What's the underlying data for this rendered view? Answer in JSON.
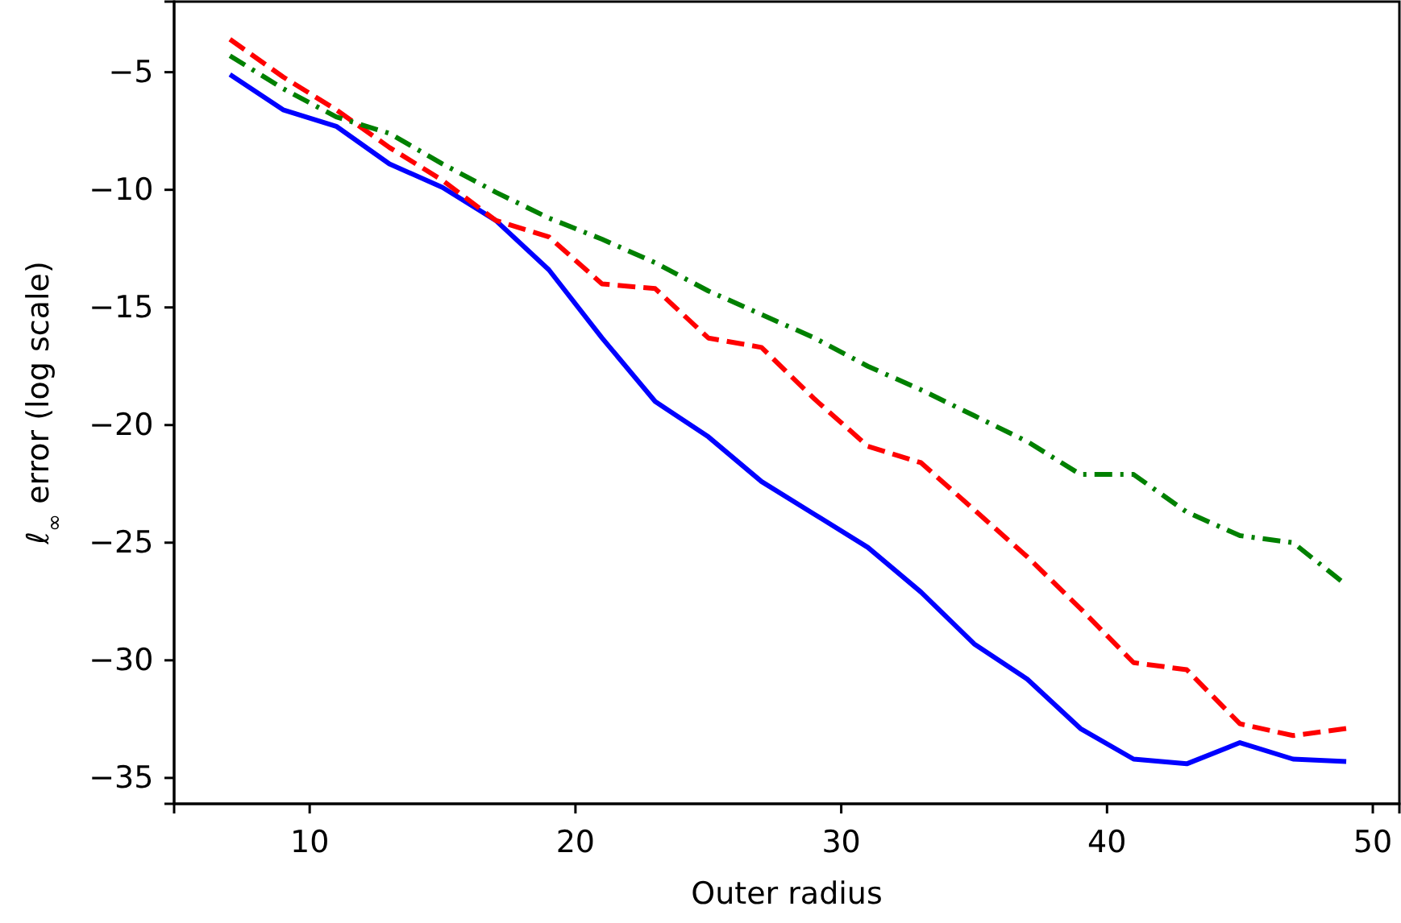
{
  "chart_data": {
    "type": "line",
    "xlabel": "Outer radius",
    "ylabel": "ℓ$_{∞}$ error (log scale)",
    "x": [
      7,
      9,
      11,
      13,
      15,
      17,
      19,
      21,
      23,
      25,
      27,
      29,
      31,
      33,
      35,
      37,
      39,
      41,
      43,
      45,
      47,
      49
    ],
    "series": [
      {
        "color": "#0000ff",
        "line_style": "solid",
        "values": [
          -5.1,
          -6.6,
          -7.3,
          -8.9,
          -9.9,
          -11.3,
          -13.4,
          -16.3,
          -19.0,
          -20.5,
          -22.4,
          -23.8,
          -25.2,
          -27.1,
          -29.3,
          -30.8,
          -32.9,
          -34.2,
          -34.4,
          -33.5,
          -34.2,
          -34.3
        ]
      },
      {
        "color": "#ff0000",
        "line_style": "dashed",
        "values": [
          -3.6,
          -5.2,
          -6.6,
          -8.2,
          -9.6,
          -11.3,
          -12.0,
          -14.0,
          -14.2,
          -16.3,
          -16.7,
          -18.9,
          -20.9,
          -21.6,
          -23.6,
          -25.6,
          -27.8,
          -30.1,
          -30.4,
          -32.7,
          -33.2,
          -32.9
        ]
      },
      {
        "color": "#008000",
        "line_style": "dashdot",
        "values": [
          -4.3,
          -5.7,
          -6.9,
          -7.6,
          -8.9,
          -10.1,
          -11.2,
          -12.1,
          -13.1,
          -14.3,
          -15.3,
          -16.3,
          -17.5,
          -18.5,
          -19.6,
          -20.7,
          -22.1,
          -22.1,
          -23.7,
          -24.7,
          -25.0,
          -26.8
        ]
      }
    ],
    "xlim": [
      4.9,
      51.0
    ],
    "ylim": [
      -36.1,
      -2.0
    ],
    "xticks": [
      10,
      20,
      30,
      40,
      50
    ],
    "yticks": [
      -5,
      -10,
      -15,
      -20,
      -25,
      -30,
      -35
    ],
    "grid": false
  }
}
